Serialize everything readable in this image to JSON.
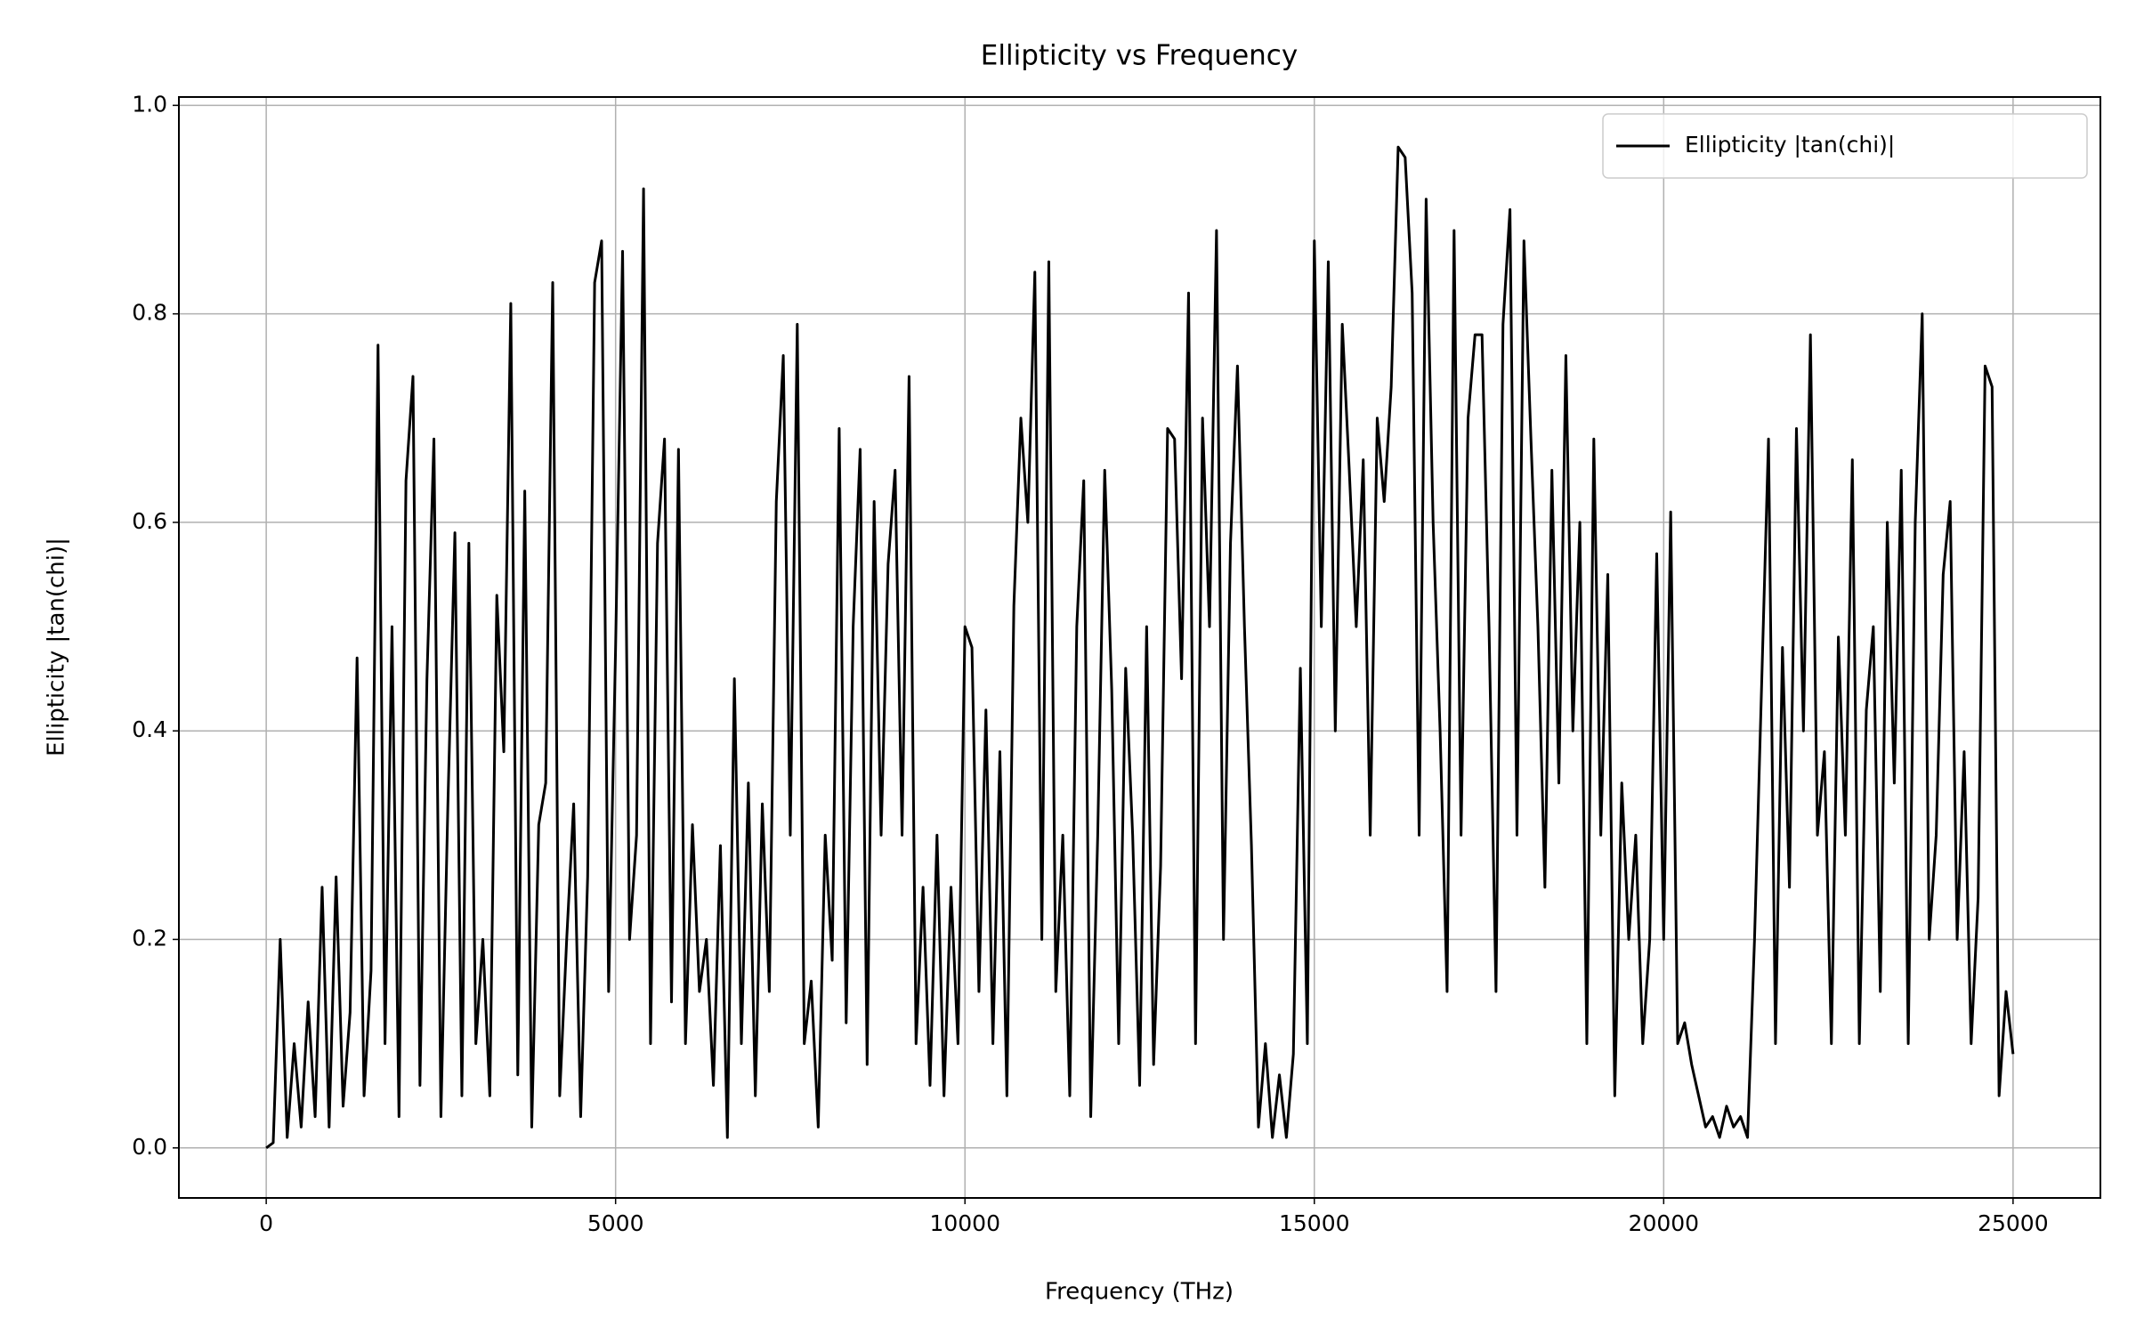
{
  "chart_data": {
    "type": "line",
    "title": "Ellipticity vs Frequency",
    "xlabel": "Frequency (THz)",
    "ylabel": "Ellipticity |tan(chi)|",
    "x": [
      0,
      100,
      200,
      300,
      400,
      500,
      600,
      700,
      800,
      900,
      1000,
      1100,
      1200,
      1300,
      1400,
      1500,
      1600,
      1700,
      1800,
      1900,
      2000,
      2100,
      2200,
      2300,
      2400,
      2500,
      2600,
      2700,
      2800,
      2900,
      3000,
      3100,
      3200,
      3300,
      3400,
      3500,
      3600,
      3700,
      3800,
      3900,
      4000,
      4100,
      4200,
      4300,
      4400,
      4500,
      4600,
      4700,
      4800,
      4900,
      5000,
      5100,
      5200,
      5300,
      5400,
      5500,
      5600,
      5700,
      5800,
      5900,
      6000,
      6100,
      6200,
      6300,
      6400,
      6500,
      6600,
      6700,
      6800,
      6900,
      7000,
      7100,
      7200,
      7300,
      7400,
      7500,
      7600,
      7700,
      7800,
      7900,
      8000,
      8100,
      8200,
      8300,
      8400,
      8500,
      8600,
      8700,
      8800,
      8900,
      9000,
      9100,
      9200,
      9300,
      9400,
      9500,
      9600,
      9700,
      9800,
      9900,
      10000,
      10100,
      10200,
      10300,
      10400,
      10500,
      10600,
      10700,
      10800,
      10900,
      11000,
      11100,
      11200,
      11300,
      11400,
      11500,
      11600,
      11700,
      11800,
      11900,
      12000,
      12100,
      12200,
      12300,
      12400,
      12500,
      12600,
      12700,
      12800,
      12900,
      13000,
      13100,
      13200,
      13300,
      13400,
      13500,
      13600,
      13700,
      13800,
      13900,
      14000,
      14100,
      14200,
      14300,
      14400,
      14500,
      14600,
      14700,
      14800,
      14900,
      15000,
      15100,
      15200,
      15300,
      15400,
      15500,
      15600,
      15700,
      15800,
      15900,
      16000,
      16100,
      16200,
      16300,
      16400,
      16500,
      16600,
      16700,
      16800,
      16900,
      17000,
      17100,
      17200,
      17300,
      17400,
      17500,
      17600,
      17700,
      17800,
      17900,
      18000,
      18100,
      18200,
      18300,
      18400,
      18500,
      18600,
      18700,
      18800,
      18900,
      19000,
      19100,
      19200,
      19300,
      19400,
      19500,
      19600,
      19700,
      19800,
      19900,
      20000,
      20100,
      20200,
      20300,
      20400,
      20500,
      20600,
      20700,
      20800,
      20900,
      21000,
      21100,
      21200,
      21300,
      21400,
      21500,
      21600,
      21700,
      21800,
      21900,
      22000,
      22100,
      22200,
      22300,
      22400,
      22500,
      22600,
      22700,
      22800,
      22900,
      23000,
      23100,
      23200,
      23300,
      23400,
      23500,
      23600,
      23700,
      23800,
      23900,
      24000,
      24100,
      24200,
      24300,
      24400,
      24500,
      24600,
      24700,
      24800,
      24900,
      25000
    ],
    "series": [
      {
        "name": "Ellipticity |tan(chi)|",
        "color": "#000000",
        "values": [
          0,
          0.005,
          0.2,
          0.01,
          0.1,
          0.02,
          0.14,
          0.03,
          0.25,
          0.02,
          0.26,
          0.04,
          0.13,
          0.47,
          0.05,
          0.17,
          0.77,
          0.1,
          0.5,
          0.03,
          0.64,
          0.74,
          0.06,
          0.45,
          0.68,
          0.03,
          0.33,
          0.59,
          0.05,
          0.58,
          0.1,
          0.2,
          0.05,
          0.53,
          0.38,
          0.81,
          0.07,
          0.63,
          0.02,
          0.31,
          0.35,
          0.83,
          0.05,
          0.2,
          0.33,
          0.03,
          0.26,
          0.83,
          0.87,
          0.15,
          0.48,
          0.86,
          0.2,
          0.3,
          0.92,
          0.1,
          0.58,
          0.68,
          0.14,
          0.67,
          0.1,
          0.31,
          0.15,
          0.2,
          0.06,
          0.29,
          0.01,
          0.45,
          0.1,
          0.35,
          0.05,
          0.33,
          0.15,
          0.62,
          0.76,
          0.3,
          0.79,
          0.1,
          0.16,
          0.02,
          0.3,
          0.18,
          0.69,
          0.12,
          0.5,
          0.67,
          0.08,
          0.62,
          0.3,
          0.56,
          0.65,
          0.3,
          0.74,
          0.1,
          0.25,
          0.06,
          0.3,
          0.05,
          0.25,
          0.1,
          0.5,
          0.48,
          0.15,
          0.42,
          0.1,
          0.38,
          0.05,
          0.52,
          0.7,
          0.6,
          0.84,
          0.2,
          0.85,
          0.15,
          0.3,
          0.05,
          0.5,
          0.64,
          0.03,
          0.3,
          0.65,
          0.44,
          0.1,
          0.46,
          0.3,
          0.06,
          0.5,
          0.08,
          0.27,
          0.69,
          0.68,
          0.45,
          0.82,
          0.1,
          0.7,
          0.5,
          0.88,
          0.2,
          0.58,
          0.75,
          0.5,
          0.29,
          0.02,
          0.1,
          0.01,
          0.07,
          0.01,
          0.09,
          0.46,
          0.1,
          0.87,
          0.5,
          0.85,
          0.4,
          0.79,
          0.65,
          0.5,
          0.66,
          0.3,
          0.7,
          0.62,
          0.73,
          0.96,
          0.95,
          0.82,
          0.3,
          0.91,
          0.6,
          0.4,
          0.15,
          0.88,
          0.3,
          0.7,
          0.78,
          0.78,
          0.5,
          0.15,
          0.79,
          0.9,
          0.3,
          0.87,
          0.68,
          0.5,
          0.25,
          0.65,
          0.35,
          0.76,
          0.4,
          0.6,
          0.1,
          0.68,
          0.3,
          0.55,
          0.05,
          0.35,
          0.2,
          0.3,
          0.1,
          0.2,
          0.57,
          0.2,
          0.61,
          0.1,
          0.12,
          0.08,
          0.05,
          0.02,
          0.03,
          0.01,
          0.04,
          0.02,
          0.03,
          0.01,
          0.2,
          0.44,
          0.68,
          0.1,
          0.48,
          0.25,
          0.69,
          0.4,
          0.78,
          0.3,
          0.38,
          0.1,
          0.49,
          0.3,
          0.66,
          0.1,
          0.42,
          0.5,
          0.15,
          0.6,
          0.35,
          0.65,
          0.1,
          0.6,
          0.8,
          0.2,
          0.3,
          0.55,
          0.62,
          0.2,
          0.38,
          0.1,
          0.24,
          0.75,
          0.73,
          0.05,
          0.15,
          0.09
        ]
      }
    ],
    "xlim": [
      -1250,
      26250
    ],
    "xticks": [
      0,
      5000,
      10000,
      15000,
      20000,
      25000
    ],
    "ylim": [
      -0.048,
      1.008
    ],
    "yticks": [
      {
        "value": 0,
        "label": "0.0"
      },
      0.2,
      0.4,
      0.6,
      0.8,
      {
        "value": 1,
        "label": "1.0"
      }
    ],
    "grid": true,
    "legend": "upper right"
  }
}
